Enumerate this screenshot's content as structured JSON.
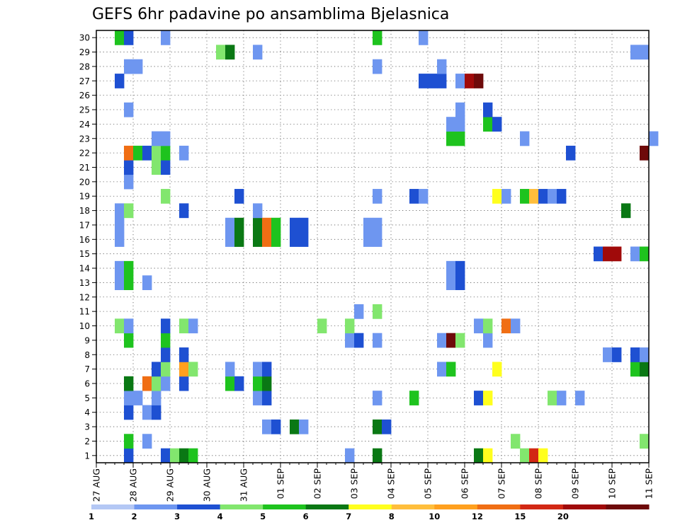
{
  "chart_data": {
    "type": "heatmap",
    "title": "GEFS 6hr padavine po ansamblima Bjelasnica",
    "xlabel": "",
    "ylabel": "",
    "y_ticks": [
      "1",
      "2",
      "3",
      "4",
      "5",
      "6",
      "7",
      "8",
      "9",
      "10",
      "11",
      "12",
      "13",
      "14",
      "15",
      "16",
      "17",
      "18",
      "19",
      "20",
      "21",
      "22",
      "23",
      "24",
      "25",
      "26",
      "27",
      "28",
      "29",
      "30"
    ],
    "x_ticks": [
      "27 AUG",
      "28 AUG",
      "29 AUG",
      "30 AUG",
      "31 AUG",
      "01 SEP",
      "02 SEP",
      "03 SEP",
      "04 SEP",
      "05 SEP",
      "06 SEP",
      "07 SEP",
      "08 SEP",
      "09 SEP",
      "10 SEP",
      "11 SEP"
    ],
    "x_range_days": [
      0,
      15
    ],
    "steps_per_day": 4,
    "grid": true,
    "legend": {
      "placement": "bottom",
      "labels": [
        "1",
        "2",
        "3",
        "4",
        "5",
        "6",
        "7",
        "8",
        "10",
        "12",
        "15",
        "20"
      ],
      "colors": [
        "#b4c8f5",
        "#6e96f0",
        "#1e50d2",
        "#82e66e",
        "#1ec31e",
        "#0a7814",
        "#ffff1e",
        "#ffbe3c",
        "#ffa01e",
        "#f06e14",
        "#d22814",
        "#a00a0a",
        "#6e0a0a"
      ]
    },
    "cells": [
      {
        "m": 1,
        "s": 3,
        "v": 2
      },
      {
        "m": 1,
        "s": 7,
        "v": 2
      },
      {
        "m": 1,
        "s": 8,
        "v": 3
      },
      {
        "m": 1,
        "s": 9,
        "v": 5
      },
      {
        "m": 1,
        "s": 10,
        "v": 4
      },
      {
        "m": 1,
        "s": 27,
        "v": 1
      },
      {
        "m": 1,
        "s": 30,
        "v": 5
      },
      {
        "m": 1,
        "s": 41,
        "v": 5
      },
      {
        "m": 1,
        "s": 42,
        "v": 6
      },
      {
        "m": 1,
        "s": 46,
        "v": 3
      },
      {
        "m": 1,
        "s": 47,
        "v": 12
      },
      {
        "m": 1,
        "s": 48,
        "v": 6
      },
      {
        "m": 2,
        "s": 3,
        "v": 4
      },
      {
        "m": 2,
        "s": 5,
        "v": 1
      },
      {
        "m": 2,
        "s": 45,
        "v": 3
      },
      {
        "m": 2,
        "s": 59,
        "v": 3
      },
      {
        "m": 3,
        "s": 18,
        "v": 1
      },
      {
        "m": 3,
        "s": 19,
        "v": 2
      },
      {
        "m": 3,
        "s": 21,
        "v": 5
      },
      {
        "m": 3,
        "s": 22,
        "v": 1
      },
      {
        "m": 3,
        "s": 30,
        "v": 5
      },
      {
        "m": 3,
        "s": 31,
        "v": 2
      },
      {
        "m": 4,
        "s": 3,
        "v": 2
      },
      {
        "m": 4,
        "s": 5,
        "v": 1
      },
      {
        "m": 4,
        "s": 6,
        "v": 2
      },
      {
        "m": 5,
        "s": 3,
        "v": 1
      },
      {
        "m": 5,
        "s": 4,
        "v": 1
      },
      {
        "m": 5,
        "s": 6,
        "v": 1
      },
      {
        "m": 5,
        "s": 17,
        "v": 1
      },
      {
        "m": 5,
        "s": 18,
        "v": 2
      },
      {
        "m": 5,
        "s": 30,
        "v": 1
      },
      {
        "m": 5,
        "s": 34,
        "v": 4
      },
      {
        "m": 5,
        "s": 41,
        "v": 2
      },
      {
        "m": 5,
        "s": 42,
        "v": 6
      },
      {
        "m": 5,
        "s": 49,
        "v": 3
      },
      {
        "m": 5,
        "s": 50,
        "v": 1
      },
      {
        "m": 5,
        "s": 52,
        "v": 1
      },
      {
        "m": 6,
        "s": 3,
        "v": 5
      },
      {
        "m": 6,
        "s": 5,
        "v": 10
      },
      {
        "m": 6,
        "s": 6,
        "v": 3
      },
      {
        "m": 6,
        "s": 7,
        "v": 1
      },
      {
        "m": 6,
        "s": 9,
        "v": 2
      },
      {
        "m": 6,
        "s": 14,
        "v": 4
      },
      {
        "m": 6,
        "s": 15,
        "v": 2
      },
      {
        "m": 6,
        "s": 17,
        "v": 4
      },
      {
        "m": 6,
        "s": 18,
        "v": 5
      },
      {
        "m": 7,
        "s": 6,
        "v": 2
      },
      {
        "m": 7,
        "s": 7,
        "v": 3
      },
      {
        "m": 7,
        "s": 9,
        "v": 8
      },
      {
        "m": 7,
        "s": 10,
        "v": 3
      },
      {
        "m": 7,
        "s": 14,
        "v": 1
      },
      {
        "m": 7,
        "s": 17,
        "v": 1
      },
      {
        "m": 7,
        "s": 18,
        "v": 2
      },
      {
        "m": 7,
        "s": 37,
        "v": 1
      },
      {
        "m": 7,
        "s": 38,
        "v": 4
      },
      {
        "m": 7,
        "s": 43,
        "v": 6
      },
      {
        "m": 7,
        "s": 58,
        "v": 4
      },
      {
        "m": 7,
        "s": 59,
        "v": 5
      },
      {
        "m": 8,
        "s": 7,
        "v": 2
      },
      {
        "m": 8,
        "s": 9,
        "v": 2
      },
      {
        "m": 8,
        "s": 55,
        "v": 1
      },
      {
        "m": 8,
        "s": 56,
        "v": 2
      },
      {
        "m": 8,
        "s": 58,
        "v": 2
      },
      {
        "m": 8,
        "s": 59,
        "v": 1
      },
      {
        "m": 9,
        "s": 3,
        "v": 4
      },
      {
        "m": 9,
        "s": 7,
        "v": 4
      },
      {
        "m": 9,
        "s": 27,
        "v": 1
      },
      {
        "m": 9,
        "s": 28,
        "v": 2
      },
      {
        "m": 9,
        "s": 30,
        "v": 1
      },
      {
        "m": 9,
        "s": 37,
        "v": 1
      },
      {
        "m": 9,
        "s": 38,
        "v": 20
      },
      {
        "m": 9,
        "s": 39,
        "v": 3
      },
      {
        "m": 9,
        "s": 42,
        "v": 1
      },
      {
        "m": 10,
        "s": 2,
        "v": 3
      },
      {
        "m": 10,
        "s": 3,
        "v": 1
      },
      {
        "m": 10,
        "s": 7,
        "v": 2
      },
      {
        "m": 10,
        "s": 9,
        "v": 3
      },
      {
        "m": 10,
        "s": 10,
        "v": 1
      },
      {
        "m": 10,
        "s": 24,
        "v": 3
      },
      {
        "m": 10,
        "s": 27,
        "v": 3
      },
      {
        "m": 10,
        "s": 41,
        "v": 1
      },
      {
        "m": 10,
        "s": 42,
        "v": 3
      },
      {
        "m": 10,
        "s": 44,
        "v": 10
      },
      {
        "m": 10,
        "s": 45,
        "v": 1
      },
      {
        "m": 11,
        "s": 28,
        "v": 1
      },
      {
        "m": 11,
        "s": 30,
        "v": 3
      },
      {
        "m": 13,
        "s": 2,
        "v": 1
      },
      {
        "m": 13,
        "s": 3,
        "v": 4
      },
      {
        "m": 13,
        "s": 5,
        "v": 1
      },
      {
        "m": 13,
        "s": 38,
        "v": 1
      },
      {
        "m": 13,
        "s": 39,
        "v": 2
      },
      {
        "m": 14,
        "s": 2,
        "v": 1
      },
      {
        "m": 14,
        "s": 3,
        "v": 4
      },
      {
        "m": 14,
        "s": 38,
        "v": 1
      },
      {
        "m": 14,
        "s": 39,
        "v": 2
      },
      {
        "m": 15,
        "s": 54,
        "v": 2
      },
      {
        "m": 15,
        "s": 55,
        "v": 15
      },
      {
        "m": 15,
        "s": 56,
        "v": 15
      },
      {
        "m": 15,
        "s": 58,
        "v": 1
      },
      {
        "m": 15,
        "s": 59,
        "v": 4
      },
      {
        "m": 16,
        "s": 2,
        "v": 1
      },
      {
        "m": 16,
        "s": 14,
        "v": 1
      },
      {
        "m": 16,
        "s": 15,
        "v": 5
      },
      {
        "m": 16,
        "s": 17,
        "v": 5
      },
      {
        "m": 16,
        "s": 18,
        "v": 10
      },
      {
        "m": 16,
        "s": 19,
        "v": 4
      },
      {
        "m": 16,
        "s": 21,
        "v": 2
      },
      {
        "m": 16,
        "s": 22,
        "v": 2
      },
      {
        "m": 16,
        "s": 29,
        "v": 1
      },
      {
        "m": 16,
        "s": 30,
        "v": 1
      },
      {
        "m": 17,
        "s": 2,
        "v": 1
      },
      {
        "m": 17,
        "s": 14,
        "v": 1
      },
      {
        "m": 17,
        "s": 15,
        "v": 5
      },
      {
        "m": 17,
        "s": 17,
        "v": 5
      },
      {
        "m": 17,
        "s": 18,
        "v": 10
      },
      {
        "m": 17,
        "s": 19,
        "v": 4
      },
      {
        "m": 17,
        "s": 21,
        "v": 2
      },
      {
        "m": 17,
        "s": 22,
        "v": 2
      },
      {
        "m": 17,
        "s": 29,
        "v": 1
      },
      {
        "m": 17,
        "s": 30,
        "v": 1
      },
      {
        "m": 18,
        "s": 2,
        "v": 1
      },
      {
        "m": 18,
        "s": 3,
        "v": 3
      },
      {
        "m": 18,
        "s": 9,
        "v": 2
      },
      {
        "m": 18,
        "s": 17,
        "v": 1
      },
      {
        "m": 18,
        "s": 57,
        "v": 5
      },
      {
        "m": 19,
        "s": 7,
        "v": 3
      },
      {
        "m": 19,
        "s": 15,
        "v": 2
      },
      {
        "m": 19,
        "s": 30,
        "v": 1
      },
      {
        "m": 19,
        "s": 34,
        "v": 2
      },
      {
        "m": 19,
        "s": 35,
        "v": 1
      },
      {
        "m": 19,
        "s": 43,
        "v": 6
      },
      {
        "m": 19,
        "s": 44,
        "v": 1
      },
      {
        "m": 19,
        "s": 46,
        "v": 4
      },
      {
        "m": 19,
        "s": 47,
        "v": 7
      },
      {
        "m": 19,
        "s": 48,
        "v": 2
      },
      {
        "m": 19,
        "s": 49,
        "v": 1
      },
      {
        "m": 19,
        "s": 50,
        "v": 2
      },
      {
        "m": 20,
        "s": 3,
        "v": 1
      },
      {
        "m": 21,
        "s": 3,
        "v": 2
      },
      {
        "m": 21,
        "s": 6,
        "v": 3
      },
      {
        "m": 21,
        "s": 7,
        "v": 2
      },
      {
        "m": 22,
        "s": 3,
        "v": 10
      },
      {
        "m": 22,
        "s": 4,
        "v": 4
      },
      {
        "m": 22,
        "s": 5,
        "v": 2
      },
      {
        "m": 22,
        "s": 6,
        "v": 3
      },
      {
        "m": 22,
        "s": 7,
        "v": 4
      },
      {
        "m": 22,
        "s": 9,
        "v": 1
      },
      {
        "m": 22,
        "s": 51,
        "v": 2
      },
      {
        "m": 22,
        "s": 59,
        "v": 20
      },
      {
        "m": 23,
        "s": 6,
        "v": 1
      },
      {
        "m": 23,
        "s": 7,
        "v": 1
      },
      {
        "m": 23,
        "s": 38,
        "v": 4
      },
      {
        "m": 23,
        "s": 39,
        "v": 4
      },
      {
        "m": 23,
        "s": 46,
        "v": 1
      },
      {
        "m": 23,
        "s": 60,
        "v": 1
      },
      {
        "m": 24,
        "s": 38,
        "v": 1
      },
      {
        "m": 24,
        "s": 39,
        "v": 1
      },
      {
        "m": 24,
        "s": 42,
        "v": 4
      },
      {
        "m": 24,
        "s": 43,
        "v": 2
      },
      {
        "m": 25,
        "s": 3,
        "v": 1
      },
      {
        "m": 25,
        "s": 39,
        "v": 1
      },
      {
        "m": 25,
        "s": 42,
        "v": 2
      },
      {
        "m": 27,
        "s": 2,
        "v": 2
      },
      {
        "m": 27,
        "s": 35,
        "v": 2
      },
      {
        "m": 27,
        "s": 36,
        "v": 2
      },
      {
        "m": 27,
        "s": 37,
        "v": 2
      },
      {
        "m": 27,
        "s": 39,
        "v": 1
      },
      {
        "m": 27,
        "s": 40,
        "v": 15
      },
      {
        "m": 27,
        "s": 41,
        "v": 20
      },
      {
        "m": 28,
        "s": 3,
        "v": 1
      },
      {
        "m": 28,
        "s": 4,
        "v": 1
      },
      {
        "m": 28,
        "s": 30,
        "v": 1
      },
      {
        "m": 28,
        "s": 37,
        "v": 1
      },
      {
        "m": 29,
        "s": 13,
        "v": 3
      },
      {
        "m": 29,
        "s": 14,
        "v": 5
      },
      {
        "m": 29,
        "s": 17,
        "v": 1
      },
      {
        "m": 29,
        "s": 58,
        "v": 1
      },
      {
        "m": 29,
        "s": 59,
        "v": 1
      },
      {
        "m": 30,
        "s": 2,
        "v": 4
      },
      {
        "m": 30,
        "s": 3,
        "v": 2
      },
      {
        "m": 30,
        "s": 7,
        "v": 1
      },
      {
        "m": 30,
        "s": 30,
        "v": 4
      },
      {
        "m": 30,
        "s": 35,
        "v": 1
      }
    ]
  }
}
